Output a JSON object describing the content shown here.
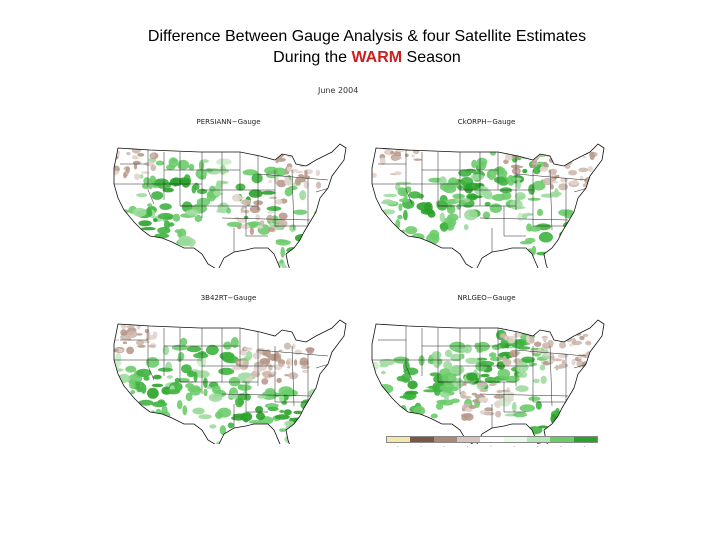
{
  "title": {
    "line1": "Difference Between Gauge Analysis & four Satellite Estimates",
    "line2_prefix": "During the ",
    "line2_highlight": "WARM",
    "line2_suffix": " Season"
  },
  "date_label": "June 2004",
  "panels": [
    {
      "label": "PERSIANN−Gauge"
    },
    {
      "label": "CkORPH−Gauge"
    },
    {
      "label": "3B42RT−Gauge"
    },
    {
      "label": "NRLGEO−Gauge"
    }
  ],
  "legend": {
    "colors": [
      "#f4e8a8",
      "#7a5846",
      "#a78a7c",
      "#d7c4bc",
      "#ffffff",
      "#eaf8ea",
      "#b5e7b5",
      "#6ccc6c",
      "#2aa22a"
    ],
    "ticks": [
      "-",
      "-",
      "-",
      "-",
      "-",
      "-",
      "-",
      "-",
      "-"
    ]
  },
  "colors": {
    "title_highlight": "#cc1f1f",
    "wet_bias": "#39b54a",
    "dry_bias": "#b89a8c"
  }
}
